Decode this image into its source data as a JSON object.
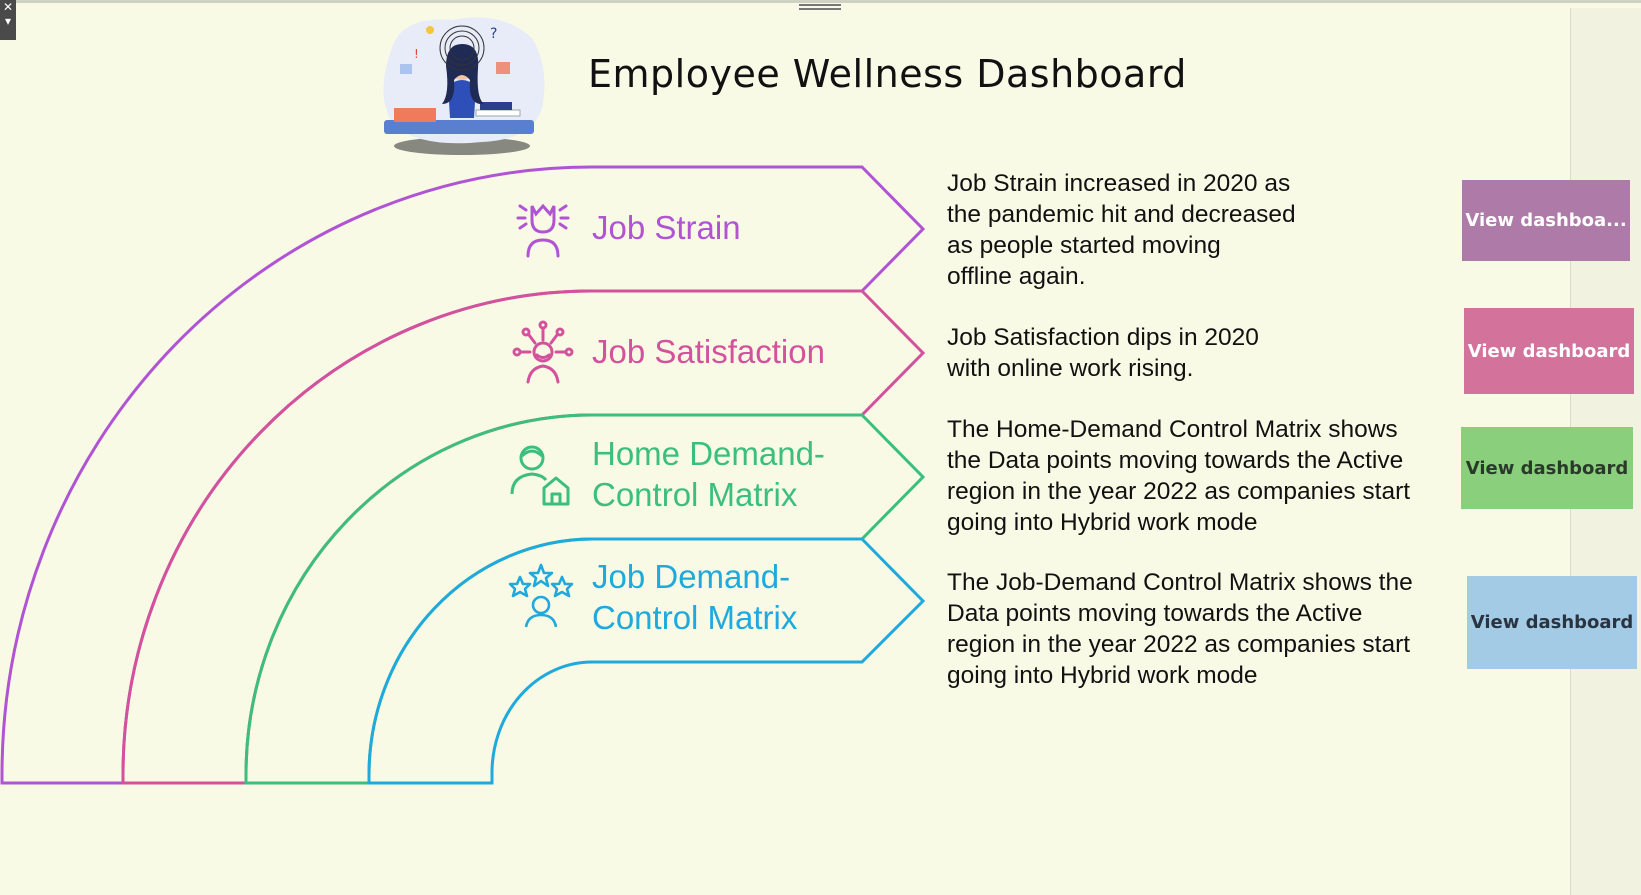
{
  "window": {
    "close_glyph": "✕",
    "menu_glyph": "▾"
  },
  "header": {
    "title": "Employee Wellness Dashboard",
    "illustration_icon": "stressed-worker-illustration"
  },
  "sections": [
    {
      "label_lines": [
        "Job Strain"
      ],
      "icon": "stressed-person-icon",
      "color": "#b054d4",
      "description_lines": [
        "Job Strain increased in 2020 as",
        "the pandemic hit and decreased",
        "as people started moving",
        "offline again."
      ],
      "button": {
        "label": "View dashboa...",
        "bg": "#ae7aa8",
        "fg": "#ffffff"
      }
    },
    {
      "label_lines": [
        "Job Satisfaction"
      ],
      "icon": "satisfied-person-icon",
      "color": "#d4519c",
      "description_lines": [
        "Job Satisfaction dips in 2020",
        "with online work rising."
      ],
      "button": {
        "label": "View dashboard",
        "bg": "#d3739b",
        "fg": "#ffffff"
      }
    },
    {
      "label_lines": [
        "Home Demand-",
        "Control Matrix"
      ],
      "icon": "person-home-icon",
      "color": "#3cbf7e",
      "description_lines": [
        "The Home-Demand Control Matrix shows",
        "the Data points moving towards the Active",
        "region in the year 2022 as companies start",
        "going into Hybrid work mode"
      ],
      "button": {
        "label": "View dashboard",
        "bg": "#8ad07c",
        "fg": "#2a3a2a"
      }
    },
    {
      "label_lines": [
        "Job Demand-",
        "Control Matrix"
      ],
      "icon": "person-stars-icon",
      "color": "#1fa9dc",
      "description_lines": [
        "The Job-Demand Control Matrix shows the",
        "Data points moving towards the Active",
        "region in the year 2022 as companies start",
        "going into Hybrid work mode"
      ],
      "button": {
        "label": "View dashboard",
        "bg": "#a3cbe6",
        "fg": "#2a3440"
      }
    }
  ]
}
